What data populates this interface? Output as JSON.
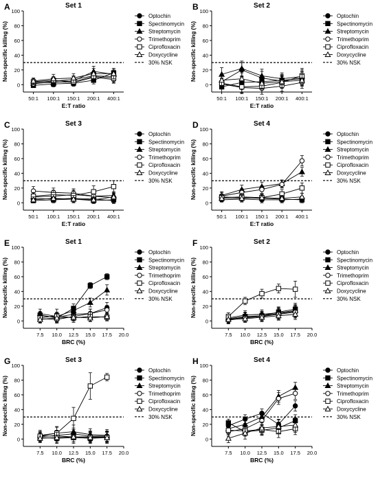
{
  "legend_labels": [
    "Optochin",
    "Spectinomycin",
    "Streptomycin",
    "Trimethoprim",
    "Ciprofloxacin",
    "Doxycycline",
    "30% NSK"
  ],
  "series_markers": [
    "circle-filled",
    "square-filled",
    "triangle-filled",
    "circle-open",
    "square-open",
    "triangle-open"
  ],
  "chart_data": [
    {
      "type": "line",
      "panel": "A",
      "title": "Set 1",
      "xlabel": "E:T ratio",
      "ylabel": "Non-specific killing (%)",
      "categories": [
        "50:1",
        "100:1",
        "150:1",
        "200:1",
        "400:1"
      ],
      "ylim": [
        -10,
        100
      ],
      "yticks": [
        0,
        20,
        40,
        60,
        80,
        100
      ],
      "reference_line": 30,
      "series": [
        {
          "name": "Optochin",
          "values": [
            3,
            5,
            7,
            12,
            11
          ],
          "errors": [
            4,
            5,
            5,
            6,
            6
          ]
        },
        {
          "name": "Spectinomycin",
          "values": [
            -1,
            1,
            2,
            6,
            16
          ],
          "errors": [
            3,
            4,
            4,
            5,
            6
          ]
        },
        {
          "name": "Streptomycin",
          "values": [
            2,
            3,
            5,
            18,
            14
          ],
          "errors": [
            3,
            5,
            6,
            7,
            6
          ]
        },
        {
          "name": "Trimethoprim",
          "values": [
            1,
            4,
            3,
            10,
            7
          ],
          "errors": [
            3,
            5,
            5,
            6,
            5
          ]
        },
        {
          "name": "Ciprofloxacin",
          "values": [
            4,
            6,
            4,
            11,
            9
          ],
          "errors": [
            4,
            5,
            5,
            6,
            6
          ]
        },
        {
          "name": "Doxycycline",
          "values": [
            5,
            8,
            9,
            15,
            15
          ],
          "errors": [
            4,
            6,
            6,
            7,
            7
          ]
        }
      ]
    },
    {
      "type": "line",
      "panel": "B",
      "title": "Set 2",
      "xlabel": "E:T ratio",
      "ylabel": "Non-specific killing (%)",
      "categories": [
        "50:1",
        "100:1",
        "150:1",
        "200:1",
        "400:1"
      ],
      "ylim": [
        -10,
        100
      ],
      "yticks": [
        0,
        20,
        40,
        60,
        80,
        100
      ],
      "reference_line": 30,
      "series": [
        {
          "name": "Optochin",
          "values": [
            4,
            20,
            9,
            5,
            9
          ],
          "errors": [
            8,
            10,
            9,
            8,
            9
          ]
        },
        {
          "name": "Spectinomycin",
          "values": [
            -3,
            3,
            4,
            6,
            8
          ],
          "errors": [
            7,
            8,
            8,
            8,
            9
          ]
        },
        {
          "name": "Streptomycin",
          "values": [
            14,
            22,
            12,
            8,
            11
          ],
          "errors": [
            9,
            10,
            9,
            8,
            9
          ]
        },
        {
          "name": "Trimethoprim",
          "values": [
            1,
            -4,
            -5,
            -2,
            3
          ],
          "errors": [
            7,
            8,
            8,
            7,
            8
          ]
        },
        {
          "name": "Ciprofloxacin",
          "values": [
            2,
            -3,
            -2,
            3,
            12
          ],
          "errors": [
            7,
            8,
            8,
            8,
            10
          ]
        },
        {
          "name": "Doxycycline",
          "values": [
            6,
            8,
            2,
            4,
            6
          ],
          "errors": [
            8,
            8,
            8,
            8,
            8
          ]
        }
      ]
    },
    {
      "type": "line",
      "panel": "C",
      "title": "Set 3",
      "xlabel": "E:T ratio",
      "ylabel": "Non-specific killing (%)",
      "categories": [
        "50:1",
        "100:1",
        "150:1",
        "200:1",
        "400:1"
      ],
      "ylim": [
        -10,
        100
      ],
      "yticks": [
        0,
        20,
        40,
        60,
        80,
        100
      ],
      "reference_line": 30,
      "series": [
        {
          "name": "Optochin",
          "values": [
            6,
            5,
            6,
            5,
            3
          ],
          "errors": [
            4,
            4,
            5,
            4,
            4
          ]
        },
        {
          "name": "Spectinomycin",
          "values": [
            3,
            4,
            5,
            3,
            4
          ],
          "errors": [
            3,
            4,
            4,
            4,
            4
          ]
        },
        {
          "name": "Streptomycin",
          "values": [
            8,
            9,
            11,
            9,
            10
          ],
          "errors": [
            4,
            5,
            6,
            5,
            5
          ]
        },
        {
          "name": "Trimethoprim",
          "values": [
            16,
            14,
            13,
            9,
            7
          ],
          "errors": [
            6,
            6,
            6,
            5,
            5
          ]
        },
        {
          "name": "Ciprofloxacin",
          "values": [
            9,
            11,
            10,
            15,
            22
          ],
          "errors": [
            5,
            6,
            7,
            8,
            8
          ]
        },
        {
          "name": "Doxycycline",
          "values": [
            4,
            6,
            5,
            4,
            8
          ],
          "errors": [
            4,
            5,
            5,
            4,
            5
          ]
        }
      ]
    },
    {
      "type": "line",
      "panel": "D",
      "title": "Set 4",
      "xlabel": "E:T ratio",
      "ylabel": "Non-specific killing (%)",
      "categories": [
        "50:1",
        "100:1",
        "150:1",
        "200:1",
        "400:1"
      ],
      "ylim": [
        -10,
        100
      ],
      "yticks": [
        0,
        20,
        40,
        60,
        80,
        100
      ],
      "reference_line": 30,
      "series": [
        {
          "name": "Optochin",
          "values": [
            4,
            5,
            4,
            4,
            5
          ],
          "errors": [
            3,
            4,
            4,
            4,
            4
          ]
        },
        {
          "name": "Spectinomycin",
          "values": [
            8,
            7,
            6,
            5,
            4
          ],
          "errors": [
            4,
            4,
            4,
            4,
            4
          ]
        },
        {
          "name": "Streptomycin",
          "values": [
            10,
            18,
            22,
            26,
            42
          ],
          "errors": [
            5,
            6,
            6,
            5,
            6
          ]
        },
        {
          "name": "Trimethoprim",
          "values": [
            9,
            14,
            18,
            25,
            57
          ],
          "errors": [
            5,
            5,
            5,
            5,
            7
          ]
        },
        {
          "name": "Ciprofloxacin",
          "values": [
            7,
            8,
            7,
            12,
            20
          ],
          "errors": [
            4,
            5,
            5,
            6,
            7
          ]
        },
        {
          "name": "Doxycycline",
          "values": [
            6,
            6,
            7,
            6,
            8
          ],
          "errors": [
            4,
            4,
            4,
            4,
            5
          ]
        }
      ]
    },
    {
      "type": "line",
      "panel": "E",
      "title": "Set 1",
      "xlabel": "BRC (%)",
      "ylabel": "Non-specific killing (%)",
      "x": [
        7.5,
        10.0,
        12.5,
        15.0,
        17.5
      ],
      "xlim": [
        5,
        20
      ],
      "xticks": [
        7.5,
        10.0,
        12.5,
        15.0,
        17.5,
        20.0
      ],
      "ylim": [
        -10,
        100
      ],
      "yticks": [
        0,
        20,
        40,
        60,
        80,
        100
      ],
      "reference_line": 30,
      "series": [
        {
          "name": "Optochin",
          "values": [
            7,
            5,
            9,
            10,
            18
          ],
          "errors": [
            5,
            6,
            6,
            6,
            7
          ]
        },
        {
          "name": "Spectinomycin",
          "values": [
            8,
            4,
            17,
            48,
            60
          ],
          "errors": [
            5,
            5,
            6,
            4,
            4
          ]
        },
        {
          "name": "Streptomycin",
          "values": [
            10,
            6,
            14,
            25,
            42
          ],
          "errors": [
            6,
            6,
            6,
            6,
            7
          ]
        },
        {
          "name": "Trimethoprim",
          "values": [
            3,
            2,
            6,
            10,
            15
          ],
          "errors": [
            5,
            5,
            6,
            6,
            6
          ]
        },
        {
          "name": "Ciprofloxacin",
          "values": [
            4,
            7,
            4,
            6,
            5
          ],
          "errors": [
            6,
            9,
            6,
            6,
            5
          ]
        },
        {
          "name": "Doxycycline",
          "values": [
            2,
            4,
            5,
            4,
            6
          ],
          "errors": [
            5,
            5,
            5,
            5,
            5
          ]
        }
      ]
    },
    {
      "type": "line",
      "panel": "F",
      "title": "Set 2",
      "xlabel": "BRC (%)",
      "ylabel": "Non-specific killing (%)",
      "x": [
        7.5,
        10.0,
        12.5,
        15.0,
        17.5
      ],
      "xlim": [
        5,
        20
      ],
      "xticks": [
        7.5,
        10.0,
        12.5,
        15.0,
        17.5,
        20.0
      ],
      "ylim": [
        -10,
        100
      ],
      "yticks": [
        0,
        20,
        40,
        60,
        80,
        100
      ],
      "reference_line": 30,
      "series": [
        {
          "name": "Optochin",
          "values": [
            2,
            5,
            7,
            10,
            13
          ],
          "errors": [
            5,
            6,
            6,
            7,
            8
          ]
        },
        {
          "name": "Spectinomycin",
          "values": [
            3,
            6,
            7,
            12,
            16
          ],
          "errors": [
            5,
            6,
            6,
            7,
            8
          ]
        },
        {
          "name": "Streptomycin",
          "values": [
            4,
            8,
            9,
            11,
            14
          ],
          "errors": [
            5,
            6,
            6,
            7,
            8
          ]
        },
        {
          "name": "Trimethoprim",
          "values": [
            1,
            4,
            6,
            9,
            12
          ],
          "errors": [
            5,
            5,
            6,
            7,
            8
          ]
        },
        {
          "name": "Ciprofloxacin",
          "values": [
            6,
            27,
            37,
            44,
            43
          ],
          "errors": [
            5,
            5,
            6,
            6,
            11
          ]
        },
        {
          "name": "Doxycycline",
          "values": [
            2,
            3,
            5,
            7,
            9
          ],
          "errors": [
            5,
            5,
            6,
            6,
            7
          ]
        }
      ]
    },
    {
      "type": "line",
      "panel": "G",
      "title": "Set 3",
      "xlabel": "BRC (%)",
      "ylabel": "Non-specific killing (%)",
      "x": [
        7.5,
        10.0,
        12.5,
        15.0,
        17.5
      ],
      "xlim": [
        5,
        20
      ],
      "xticks": [
        7.5,
        10.0,
        12.5,
        15.0,
        17.5,
        20.0
      ],
      "ylim": [
        -10,
        100
      ],
      "yticks": [
        0,
        20,
        40,
        60,
        80,
        100
      ],
      "reference_line": 30,
      "series": [
        {
          "name": "Optochin",
          "values": [
            3,
            5,
            7,
            4,
            4
          ],
          "errors": [
            6,
            7,
            8,
            7,
            7
          ]
        },
        {
          "name": "Spectinomycin",
          "values": [
            2,
            1,
            2,
            1,
            2
          ],
          "errors": [
            6,
            7,
            8,
            7,
            8
          ]
        },
        {
          "name": "Streptomycin",
          "values": [
            5,
            8,
            10,
            6,
            5
          ],
          "errors": [
            7,
            8,
            9,
            8,
            8
          ]
        },
        {
          "name": "Trimethoprim",
          "values": [
            4,
            4,
            3,
            3,
            3
          ],
          "errors": [
            6,
            7,
            7,
            7,
            7
          ]
        },
        {
          "name": "Ciprofloxacin",
          "values": [
            4,
            8,
            28,
            72,
            84
          ],
          "errors": [
            6,
            9,
            15,
            18,
            5
          ]
        },
        {
          "name": "Doxycycline",
          "values": [
            1,
            2,
            3,
            2,
            2
          ],
          "errors": [
            6,
            7,
            7,
            7,
            7
          ]
        }
      ]
    },
    {
      "type": "line",
      "panel": "H",
      "title": "Set 4",
      "xlabel": "BRC (%)",
      "ylabel": "Non-specific killing (%)",
      "x": [
        7.5,
        10.0,
        12.5,
        15.0,
        17.5
      ],
      "xlim": [
        5,
        20
      ],
      "xticks": [
        7.5,
        10.0,
        12.5,
        15.0,
        17.5,
        20.0
      ],
      "ylim": [
        -10,
        100
      ],
      "yticks": [
        0,
        20,
        40,
        60,
        80,
        100
      ],
      "reference_line": 30,
      "series": [
        {
          "name": "Optochin",
          "values": [
            18,
            27,
            35,
            20,
            45
          ],
          "errors": [
            5,
            6,
            6,
            7,
            7
          ]
        },
        {
          "name": "Spectinomycin",
          "values": [
            22,
            10,
            12,
            15,
            25
          ],
          "errors": [
            5,
            6,
            7,
            8,
            8
          ]
        },
        {
          "name": "Streptomycin",
          "values": [
            14,
            20,
            30,
            58,
            70
          ],
          "errors": [
            6,
            7,
            7,
            8,
            7
          ]
        },
        {
          "name": "Trimethoprim",
          "values": [
            10,
            14,
            25,
            55,
            62
          ],
          "errors": [
            6,
            7,
            7,
            8,
            8
          ]
        },
        {
          "name": "Ciprofloxacin",
          "values": [
            12,
            11,
            13,
            10,
            14
          ],
          "errors": [
            6,
            7,
            7,
            8,
            8
          ]
        },
        {
          "name": "Doxycycline",
          "values": [
            1,
            8,
            15,
            17,
            19
          ],
          "errors": [
            6,
            8,
            8,
            9,
            10
          ]
        }
      ]
    }
  ]
}
